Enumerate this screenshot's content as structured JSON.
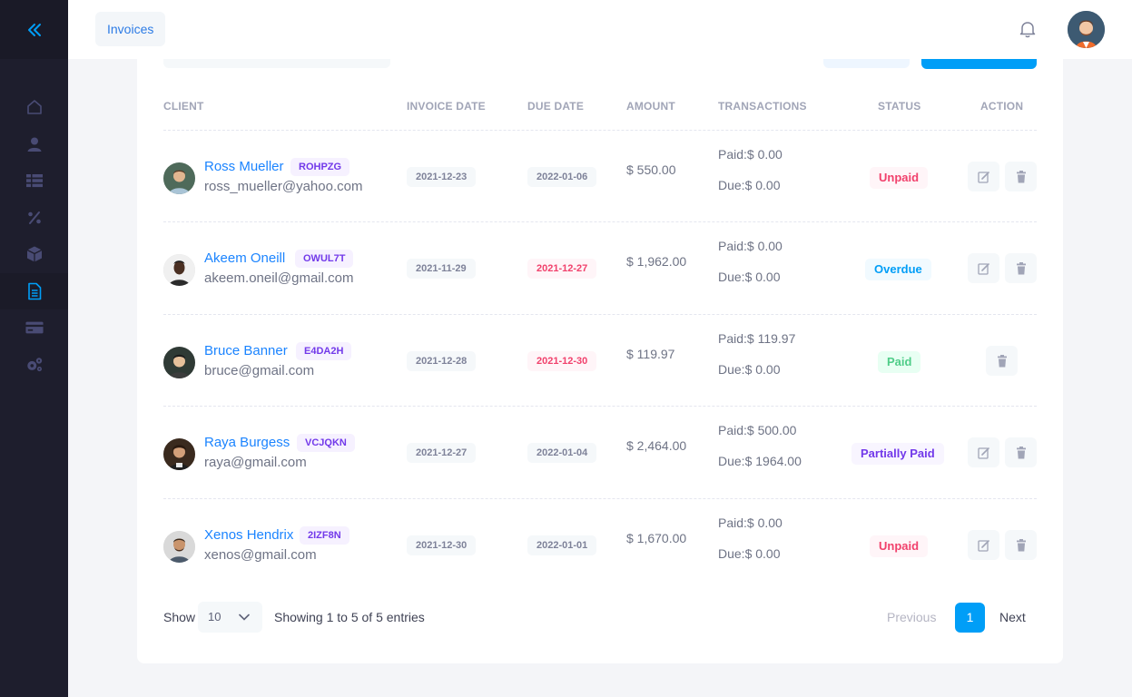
{
  "header": {
    "breadcrumb": "Invoices"
  },
  "sidebar": {
    "items": [
      {
        "icon": "home-icon"
      },
      {
        "icon": "user-icon"
      },
      {
        "icon": "list-icon"
      },
      {
        "icon": "percent-icon"
      },
      {
        "icon": "box-icon"
      },
      {
        "icon": "file-icon",
        "active": true
      },
      {
        "icon": "credit-card-icon"
      },
      {
        "icon": "gears-icon"
      }
    ]
  },
  "table": {
    "headers": {
      "client": "CLIENT",
      "invoice_date": "INVOICE DATE",
      "due_date": "DUE DATE",
      "amount": "AMOUNT",
      "transactions": "TRANSACTIONS",
      "status": "STATUS",
      "action": "ACTION"
    },
    "rows": [
      {
        "name": "Ross Mueller",
        "code": "ROHPZG",
        "email": "ross_mueller@yahoo.com",
        "invoice_date": "2021-12-23",
        "due_date": "2022-01-06",
        "due_overdue": false,
        "amount": "$ 550.00",
        "paid": "Paid:$ 0.00",
        "due": "Due:$ 0.00",
        "status": "Unpaid",
        "status_kind": "unpaid",
        "editable": true
      },
      {
        "name": "Akeem Oneill",
        "code": "OWUL7T",
        "email": "akeem.oneil@gmail.com",
        "invoice_date": "2021-11-29",
        "due_date": "2021-12-27",
        "due_overdue": true,
        "amount": "$ 1,962.00",
        "paid": "Paid:$ 0.00",
        "due": "Due:$ 0.00",
        "status": "Overdue",
        "status_kind": "overdue",
        "editable": true
      },
      {
        "name": "Bruce Banner",
        "code": "E4DA2H",
        "email": "bruce@gmail.com",
        "invoice_date": "2021-12-28",
        "due_date": "2021-12-30",
        "due_overdue": true,
        "amount": "$ 119.97",
        "paid": "Paid:$ 119.97",
        "due": "Due:$ 0.00",
        "status": "Paid",
        "status_kind": "paid",
        "editable": false
      },
      {
        "name": "Raya Burgess",
        "code": "VCJQKN",
        "email": "raya@gmail.com",
        "invoice_date": "2021-12-27",
        "due_date": "2022-01-04",
        "due_overdue": false,
        "amount": "$ 2,464.00",
        "paid": "Paid:$ 500.00",
        "due": "Due:$ 1964.00",
        "status": "Partially Paid",
        "status_kind": "partial",
        "editable": true
      },
      {
        "name": "Xenos Hendrix",
        "code": "2IZF8N",
        "email": "xenos@gmail.com",
        "invoice_date": "2021-12-30",
        "due_date": "2022-01-01",
        "due_overdue": false,
        "amount": "$ 1,670.00",
        "paid": "Paid:$ 0.00",
        "due": "Due:$ 0.00",
        "status": "Unpaid",
        "status_kind": "unpaid",
        "editable": true
      }
    ]
  },
  "footer": {
    "show_label": "Show",
    "page_size": "10",
    "info": "Showing 1 to 5 of 5 entries",
    "previous": "Previous",
    "current_page": "1",
    "next": "Next"
  },
  "colors": {
    "accent": "#009ef7",
    "sidebar_bg": "#1e1e2d",
    "danger": "#f1416c",
    "success": "#50cd89",
    "purple": "#7239ea"
  }
}
